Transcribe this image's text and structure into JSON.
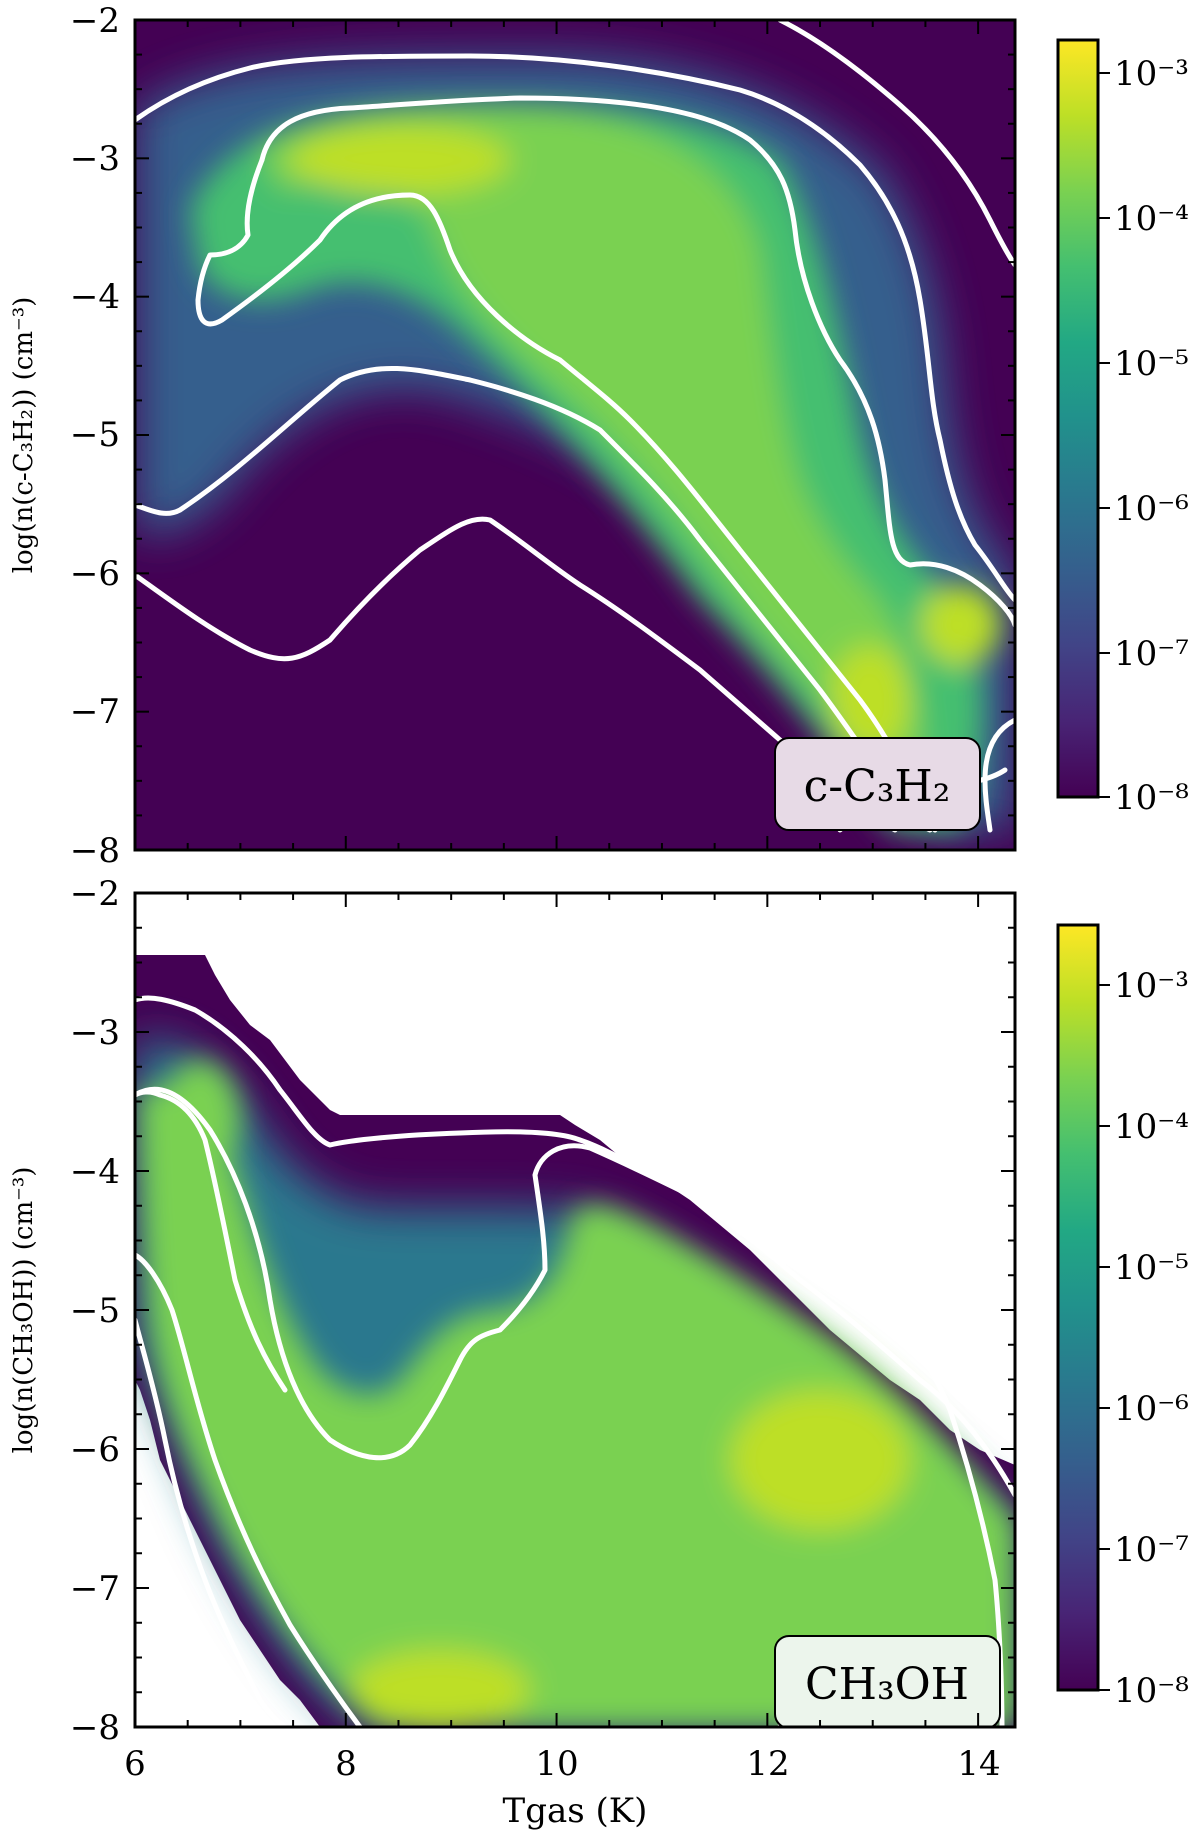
{
  "chart_data": [
    {
      "type": "heatmap",
      "species_label": "c-C₃H₂",
      "ylabel": "log(n(c-C₃H₂)) (cm⁻³)",
      "xlabel": "",
      "xlim": [
        6,
        14.35
      ],
      "ylim": [
        -8,
        -2
      ],
      "x_ticks": [
        "6",
        "8",
        "10",
        "12",
        "14"
      ],
      "y_ticks": [
        "−2",
        "−3",
        "−4",
        "−5",
        "−6",
        "−7",
        "−8"
      ],
      "colorbar": {
        "scale": "log",
        "range": [
          1e-08,
          0.0022
        ],
        "tick_labels": [
          "10⁻³",
          "10⁻⁴",
          "10⁻⁵",
          "10⁻⁶",
          "10⁻⁷",
          "10⁻⁸"
        ],
        "colormap": "viridis"
      },
      "grid": false,
      "peak_region": {
        "x": 9.0,
        "y": -3.0
      },
      "secondary_peak": {
        "x": 12.7,
        "y": -7.0
      }
    },
    {
      "type": "heatmap",
      "species_label": "CH₃OH",
      "ylabel": "log(n(CH₃OH)) (cm⁻³)",
      "xlabel": "Tgas (K)",
      "xlim": [
        6,
        14.35
      ],
      "ylim": [
        -8,
        -2
      ],
      "x_ticks": [
        "6",
        "8",
        "10",
        "12",
        "14"
      ],
      "y_ticks": [
        "−2",
        "−3",
        "−4",
        "−5",
        "−6",
        "−7",
        "−8"
      ],
      "colorbar": {
        "scale": "log",
        "range": [
          1e-08,
          0.0025
        ],
        "tick_labels": [
          "10⁻³",
          "10⁻⁴",
          "10⁻⁵",
          "10⁻⁶",
          "10⁻⁷",
          "10⁻⁸"
        ],
        "colormap": "viridis"
      },
      "grid": false,
      "peak_region": {
        "x": 12.5,
        "y": -6.7
      },
      "secondary_peak": {
        "x": 9.0,
        "y": -7.8
      }
    }
  ],
  "colors": {
    "viridis_low": "#440154",
    "viridis_mid": "#21918c",
    "viridis_high": "#fde725",
    "contour": "#ffffff",
    "tag_bg_top": "#e7dae6",
    "tag_bg_bottom": "#ecf5ec"
  }
}
